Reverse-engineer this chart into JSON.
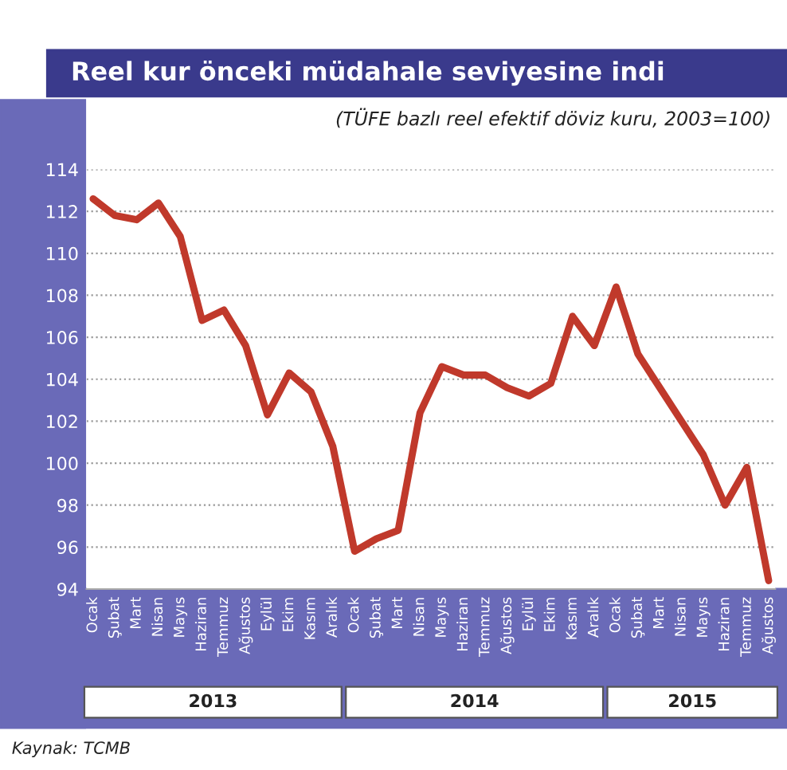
{
  "chart_data": {
    "type": "line",
    "title": "Reel kur önceki müdahale seviyesine indi",
    "subtitle": "(TÜFE bazlı reel efektif döviz kuru, 2003=100)",
    "categories": [
      "Ocak",
      "Şubat",
      "Mart",
      "Nisan",
      "Mayıs",
      "Haziran",
      "Temmuz",
      "Ağustos",
      "Eylül",
      "Ekim",
      "Kasım",
      "Aralık",
      "Ocak",
      "Şubat",
      "Mart",
      "Nisan",
      "Mayıs",
      "Haziran",
      "Temmuz",
      "Ağustos",
      "Eylül",
      "Ekim",
      "Kasım",
      "Aralık",
      "Ocak",
      "Şubat",
      "Mart",
      "Nisan",
      "Mayıs",
      "Haziran",
      "Temmuz",
      "Ağustos"
    ],
    "series": [
      {
        "color": "#c0392b",
        "values": [
          112.6,
          111.8,
          111.6,
          112.4,
          110.8,
          106.8,
          107.3,
          105.6,
          102.3,
          104.3,
          103.4,
          100.8,
          95.8,
          96.4,
          96.8,
          102.4,
          104.6,
          104.2,
          104.2,
          103.6,
          103.2,
          103.8,
          107,
          105.6,
          108.4,
          105.2,
          103.6,
          102,
          100.4,
          98,
          99.8,
          94.4
        ]
      }
    ],
    "ylim": [
      94,
      114
    ],
    "yticks": [
      94,
      96,
      98,
      100,
      102,
      104,
      106,
      108,
      110,
      112,
      114
    ],
    "grid": "y",
    "line_style": "solid",
    "marker": "none",
    "annotations": [
      "2013",
      "2014",
      "2015",
      "Kaynak: TCMB"
    ]
  }
}
